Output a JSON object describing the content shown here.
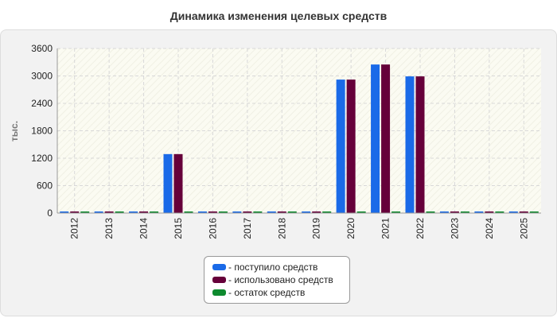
{
  "chart_data": {
    "type": "bar",
    "title": "Динамика изменения целевых средств",
    "ylabel": "тыс.",
    "xlabel": "",
    "ylim": [
      0,
      3600
    ],
    "yticks": [
      0,
      600,
      1200,
      1800,
      2400,
      3000,
      3600
    ],
    "grid": true,
    "legend_position": "bottom",
    "categories": [
      "2012",
      "2013",
      "2014",
      "2015",
      "2016",
      "2017",
      "2018",
      "2019",
      "2020",
      "2021",
      "2022",
      "2023",
      "2024",
      "2025"
    ],
    "series": [
      {
        "name": "- поступило средств",
        "color": "#1a6ae8",
        "values": [
          0,
          0,
          0,
          1290,
          0,
          0,
          0,
          0,
          2920,
          3250,
          2990,
          0,
          0,
          0
        ]
      },
      {
        "name": "- использовано средств",
        "color": "#66003a",
        "values": [
          0,
          0,
          0,
          1290,
          0,
          0,
          0,
          0,
          2920,
          3250,
          2990,
          0,
          0,
          0
        ]
      },
      {
        "name": "- остаток средств",
        "color": "#0e8a2e",
        "values": [
          0,
          0,
          0,
          0,
          0,
          0,
          0,
          0,
          0,
          0,
          0,
          0,
          0,
          0
        ]
      }
    ]
  }
}
